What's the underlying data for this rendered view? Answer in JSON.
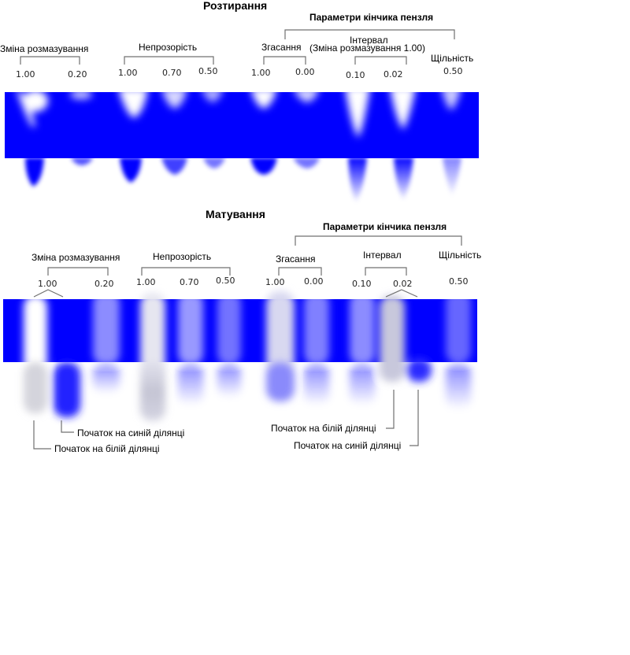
{
  "colors": {
    "band": "#0000ff",
    "bracket": "#707070",
    "paint_blue": "#0000ff",
    "paint_white": "#ffffff",
    "smear_grey": "#8a8aa8"
  },
  "smudge": {
    "title": "Розтирання",
    "tip_params_label": "Параметри кінчика пензля",
    "groups": [
      {
        "label": "Зміна розмазування",
        "values": [
          "1.00",
          "0.20"
        ]
      },
      {
        "label": "Непрозорість",
        "values": [
          "1.00",
          "0.70",
          "0.50"
        ]
      },
      {
        "label": "Згасання",
        "values": [
          "1.00",
          "0.00"
        ]
      },
      {
        "label": "Інтервал",
        "label2": "(Зміна розмазування 1.00)",
        "values": [
          "0.10",
          "0.02"
        ]
      },
      {
        "label": "Щільність",
        "values": [
          "0.50"
        ]
      }
    ]
  },
  "blur": {
    "title": "Матування",
    "tip_params_label": "Параметри кінчика пензля",
    "groups": [
      {
        "label": "Зміна розмазування",
        "values": [
          "1.00",
          "0.20"
        ]
      },
      {
        "label": "Непрозорість",
        "values": [
          "1.00",
          "0.70",
          "0.50"
        ]
      },
      {
        "label": "Згасання",
        "values": [
          "1.00",
          "0.00"
        ]
      },
      {
        "label": "Інтервал",
        "values": [
          "0.10",
          "0.02"
        ]
      },
      {
        "label": "Щільність",
        "values": [
          "0.50"
        ]
      }
    ],
    "callouts": {
      "start_blue_left": "Початок на синій ділянці",
      "start_white_left": "Початок на білій ділянці",
      "start_white_right": "Початок на білій ділянці",
      "start_blue_right": "Початок на синій ділянці"
    }
  }
}
